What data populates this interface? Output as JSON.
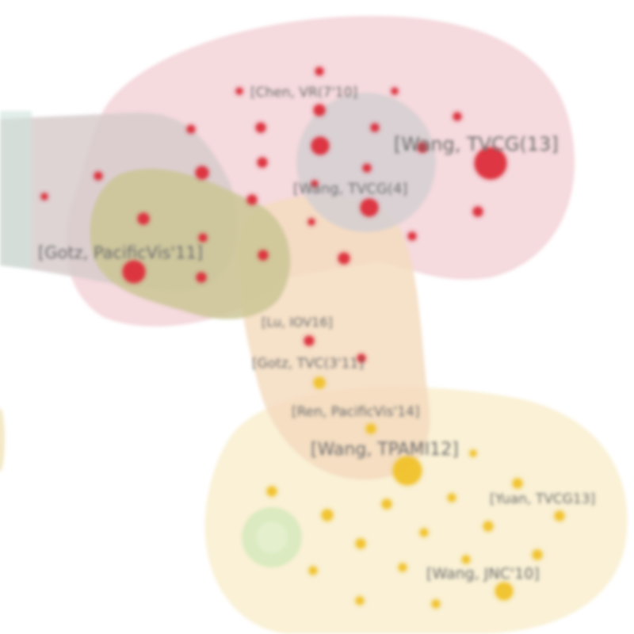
{
  "labels": [
    {
      "id": "chen",
      "text": "[Chen, VR(7'10]"
    },
    {
      "id": "wang13",
      "text": "[Wang, TVCG(13]"
    },
    {
      "id": "wang4",
      "text": "[Wang, TVCG(4]"
    },
    {
      "id": "gotz",
      "text": "[Gotz, PacificVis'11]"
    },
    {
      "id": "liu",
      "text": "[Lu, IOV16]"
    },
    {
      "id": "gotz2",
      "text": "[Gotz, TVC(3'11]"
    },
    {
      "id": "ren",
      "text": "[Ren, PacificVis'14]"
    },
    {
      "id": "wangT",
      "text": "[Wang, TPAMI12]"
    },
    {
      "id": "yuan",
      "text": "[Yuan, TVCG13]"
    },
    {
      "id": "wangJ",
      "text": "[Wang, JNC'10]"
    }
  ],
  "colors": {
    "red": "#dc2f3c",
    "yellow": "#f0c22a",
    "pink_region": "#f3d6da",
    "gray_region": "#d9cfcf",
    "tan_region": "#f4ddc2",
    "olive_region": "#cfcb9b",
    "cream_region": "#faf0d4",
    "green_circle": "#d9ebbf"
  }
}
